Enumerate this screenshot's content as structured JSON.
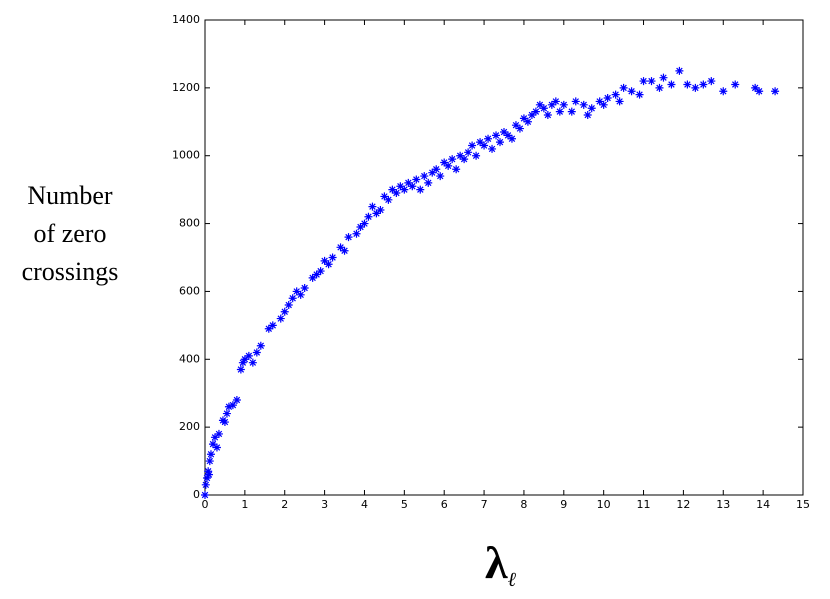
{
  "chart_data": {
    "type": "scatter",
    "ylabel": [
      "Number",
      "of zero",
      "crossings"
    ],
    "xlabel": {
      "symbol": "λ",
      "subscript": "ℓ"
    },
    "color": "#0000ff",
    "marker": "asterisk",
    "xlim": [
      0,
      15
    ],
    "xticks": [
      0,
      1,
      2,
      3,
      4,
      5,
      6,
      7,
      8,
      9,
      10,
      11,
      12,
      13,
      14,
      15
    ],
    "ylim": [
      0,
      1400
    ],
    "yticks": [
      0,
      200,
      400,
      600,
      800,
      1000,
      1200,
      1400
    ],
    "x": [
      0,
      0.02,
      0.05,
      0.08,
      0.1,
      0.12,
      0.15,
      0.2,
      0.25,
      0.3,
      0.35,
      0.45,
      0.5,
      0.55,
      0.6,
      0.7,
      0.8,
      0.9,
      0.95,
      1.0,
      1.1,
      1.2,
      1.3,
      1.4,
      1.6,
      1.7,
      1.9,
      2.0,
      2.1,
      2.2,
      2.3,
      2.4,
      2.5,
      2.7,
      2.8,
      2.9,
      3.0,
      3.1,
      3.2,
      3.4,
      3.5,
      3.6,
      3.8,
      3.9,
      4.0,
      4.1,
      4.2,
      4.3,
      4.4,
      4.5,
      4.6,
      4.7,
      4.8,
      4.9,
      5.0,
      5.1,
      5.2,
      5.3,
      5.4,
      5.5,
      5.6,
      5.7,
      5.8,
      5.9,
      6.0,
      6.1,
      6.2,
      6.3,
      6.4,
      6.5,
      6.6,
      6.7,
      6.8,
      6.9,
      7.0,
      7.1,
      7.2,
      7.3,
      7.4,
      7.5,
      7.6,
      7.7,
      7.8,
      7.9,
      8.0,
      8.1,
      8.2,
      8.3,
      8.4,
      8.5,
      8.6,
      8.7,
      8.8,
      8.9,
      9.0,
      9.2,
      9.3,
      9.5,
      9.6,
      9.7,
      9.9,
      10.0,
      10.1,
      10.3,
      10.4,
      10.5,
      10.7,
      10.9,
      11.0,
      11.2,
      11.4,
      11.5,
      11.7,
      11.9,
      12.1,
      12.3,
      12.5,
      12.7,
      13.0,
      13.3,
      13.8,
      13.9,
      14.3
    ],
    "y": [
      0,
      30,
      50,
      70,
      60,
      100,
      120,
      150,
      170,
      140,
      180,
      220,
      215,
      240,
      260,
      265,
      280,
      370,
      390,
      400,
      410,
      390,
      420,
      440,
      490,
      500,
      520,
      540,
      560,
      580,
      600,
      590,
      610,
      640,
      650,
      660,
      690,
      680,
      700,
      730,
      720,
      760,
      770,
      790,
      800,
      820,
      850,
      830,
      840,
      880,
      870,
      900,
      890,
      910,
      900,
      920,
      910,
      930,
      900,
      940,
      920,
      950,
      960,
      940,
      980,
      970,
      990,
      960,
      1000,
      990,
      1010,
      1030,
      1000,
      1040,
      1030,
      1050,
      1020,
      1060,
      1040,
      1070,
      1060,
      1050,
      1090,
      1080,
      1110,
      1100,
      1120,
      1130,
      1150,
      1140,
      1120,
      1150,
      1160,
      1130,
      1150,
      1130,
      1160,
      1150,
      1120,
      1140,
      1160,
      1150,
      1170,
      1180,
      1160,
      1200,
      1190,
      1180,
      1220,
      1220,
      1200,
      1230,
      1210,
      1250,
      1210,
      1200,
      1210,
      1220,
      1190,
      1210,
      1200,
      1190,
      1190
    ]
  }
}
